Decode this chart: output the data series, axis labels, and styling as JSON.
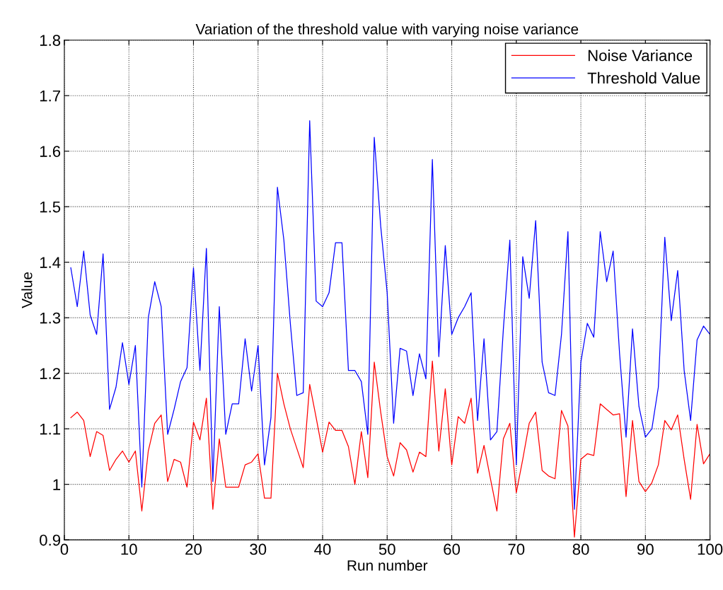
{
  "chart_data": {
    "type": "line",
    "title": "Variation of the threshold value with varying noise variance",
    "xlabel": "Run number",
    "ylabel": "Value",
    "x": [
      1,
      2,
      3,
      4,
      5,
      6,
      7,
      8,
      9,
      10,
      11,
      12,
      13,
      14,
      15,
      16,
      17,
      18,
      19,
      20,
      21,
      22,
      23,
      24,
      25,
      26,
      27,
      28,
      29,
      30,
      31,
      32,
      33,
      34,
      35,
      36,
      37,
      38,
      39,
      40,
      41,
      42,
      43,
      44,
      45,
      46,
      47,
      48,
      49,
      50,
      51,
      52,
      53,
      54,
      55,
      56,
      57,
      58,
      59,
      60,
      61,
      62,
      63,
      64,
      65,
      66,
      67,
      68,
      69,
      70,
      71,
      72,
      73,
      74,
      75,
      76,
      77,
      78,
      79,
      80,
      81,
      82,
      83,
      84,
      85,
      86,
      87,
      88,
      89,
      90,
      91,
      92,
      93,
      94,
      95,
      96,
      97,
      98,
      99,
      100
    ],
    "series": [
      {
        "name": "Noise Variance",
        "color": "#ff0000",
        "values": [
          1.12,
          1.13,
          1.115,
          1.05,
          1.095,
          1.088,
          1.025,
          1.045,
          1.06,
          1.04,
          1.06,
          0.952,
          1.06,
          1.11,
          1.125,
          1.005,
          1.045,
          1.04,
          0.995,
          1.112,
          1.08,
          1.155,
          0.955,
          1.082,
          0.995,
          0.995,
          0.995,
          1.035,
          1.04,
          1.055,
          0.975,
          0.975,
          1.2,
          1.145,
          1.1,
          1.065,
          1.03,
          1.18,
          1.12,
          1.058,
          1.112,
          1.097,
          1.097,
          1.068,
          1.0,
          1.095,
          1.012,
          1.22,
          1.13,
          1.05,
          1.015,
          1.075,
          1.062,
          1.022,
          1.058,
          1.05,
          1.222,
          1.06,
          1.172,
          1.035,
          1.122,
          1.11,
          1.155,
          1.02,
          1.07,
          1.01,
          0.952,
          1.082,
          1.11,
          0.985,
          1.045,
          1.11,
          1.13,
          1.025,
          1.015,
          1.01,
          1.133,
          1.105,
          0.905,
          1.045,
          1.055,
          1.052,
          1.145,
          1.135,
          1.125,
          1.127,
          0.978,
          1.115,
          1.005,
          0.987,
          1.003,
          1.035,
          1.115,
          1.098,
          1.125,
          1.045,
          0.973,
          1.108,
          1.037,
          1.055
        ]
      },
      {
        "name": "Threshold Value",
        "color": "#0000ff",
        "values": [
          1.39,
          1.32,
          1.42,
          1.305,
          1.27,
          1.415,
          1.135,
          1.175,
          1.255,
          1.18,
          1.25,
          0.995,
          1.3,
          1.365,
          1.32,
          1.09,
          1.135,
          1.185,
          1.21,
          1.39,
          1.205,
          1.425,
          1.005,
          1.32,
          1.09,
          1.145,
          1.145,
          1.262,
          1.168,
          1.25,
          1.035,
          1.12,
          1.535,
          1.44,
          1.29,
          1.16,
          1.165,
          1.655,
          1.33,
          1.32,
          1.345,
          1.435,
          1.435,
          1.205,
          1.205,
          1.185,
          1.09,
          1.625,
          1.465,
          1.345,
          1.11,
          1.245,
          1.24,
          1.16,
          1.235,
          1.19,
          1.585,
          1.23,
          1.43,
          1.27,
          1.3,
          1.32,
          1.345,
          1.115,
          1.262,
          1.08,
          1.095,
          1.28,
          1.44,
          1.035,
          1.41,
          1.335,
          1.475,
          1.22,
          1.165,
          1.16,
          1.27,
          1.455,
          0.955,
          1.22,
          1.29,
          1.265,
          1.455,
          1.365,
          1.42,
          1.235,
          1.085,
          1.28,
          1.14,
          1.085,
          1.1,
          1.175,
          1.445,
          1.295,
          1.385,
          1.205,
          1.115,
          1.26,
          1.285,
          1.27
        ]
      }
    ],
    "xlim": [
      0,
      100
    ],
    "xticks": [
      0,
      10,
      20,
      30,
      40,
      50,
      60,
      70,
      80,
      90,
      100
    ],
    "ylim": [
      0.9,
      1.8
    ],
    "yticks": [
      0.9,
      1,
      1.1,
      1.2,
      1.3,
      1.4,
      1.5,
      1.6,
      1.7,
      1.8
    ],
    "grid": true,
    "legend": "top right",
    "line_style": "solid",
    "marker": "none"
  }
}
